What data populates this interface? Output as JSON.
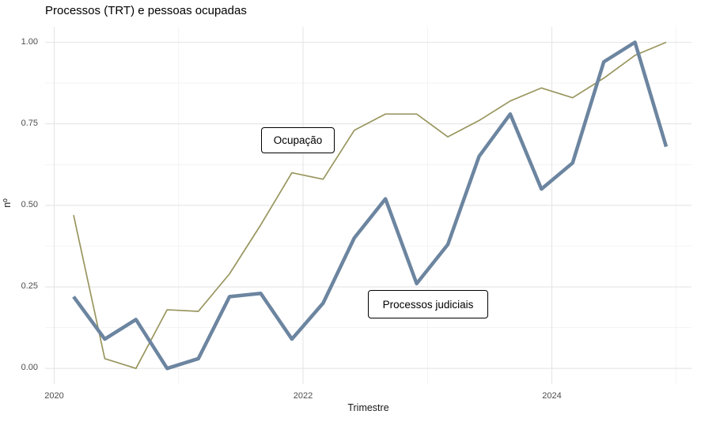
{
  "chart_data": {
    "type": "line",
    "title": "Processos (TRT) e pessoas ocupadas",
    "xlabel": "Trimestre",
    "ylabel": "nº",
    "x_tick_labels": [
      "2020",
      "2022",
      "2024"
    ],
    "y_tick_labels": [
      "0.00",
      "0.25",
      "0.50",
      "0.75",
      "1.00"
    ],
    "ylim": [
      0,
      1
    ],
    "grid": "major and minor light-gray gridlines on white background, no axis ticks",
    "legend": "none (boxed geom_label annotations on plot)",
    "categories": [
      "2020-T1",
      "2020-T2",
      "2020-T3",
      "2020-T4",
      "2021-T1",
      "2021-T2",
      "2021-T3",
      "2021-T4",
      "2022-T1",
      "2022-T2",
      "2022-T3",
      "2022-T4",
      "2023-T1",
      "2023-T2",
      "2023-T3",
      "2023-T4",
      "2024-T1",
      "2024-T2",
      "2024-T3",
      "2024-T4"
    ],
    "series": [
      {
        "name": "Ocupação",
        "color": "#99965f",
        "linewidth": 1.7,
        "values": [
          0.47,
          0.03,
          0.0,
          0.18,
          0.175,
          0.29,
          0.44,
          0.6,
          0.58,
          0.73,
          0.78,
          0.78,
          0.71,
          0.76,
          0.82,
          0.86,
          0.83,
          0.89,
          0.96,
          1.0
        ]
      },
      {
        "name": "Processos judiciais",
        "color": "#6c85a0",
        "linewidth": 4.5,
        "values": [
          0.22,
          0.09,
          0.15,
          0.0,
          0.03,
          0.22,
          0.23,
          0.09,
          0.2,
          0.4,
          0.52,
          0.26,
          0.38,
          0.65,
          0.78,
          0.55,
          0.63,
          0.94,
          1.0,
          0.68
        ]
      }
    ],
    "annotations": [
      {
        "text": "Ocupação",
        "series": "Ocupação"
      },
      {
        "text": "Processos judiciais",
        "series": "Processos judiciais"
      }
    ]
  },
  "style": {
    "background": "#ffffff",
    "major_grid": "#e5e5e5",
    "minor_grid": "#efefef",
    "tick_text": "#4d4d4d",
    "title_text": "#000000"
  }
}
